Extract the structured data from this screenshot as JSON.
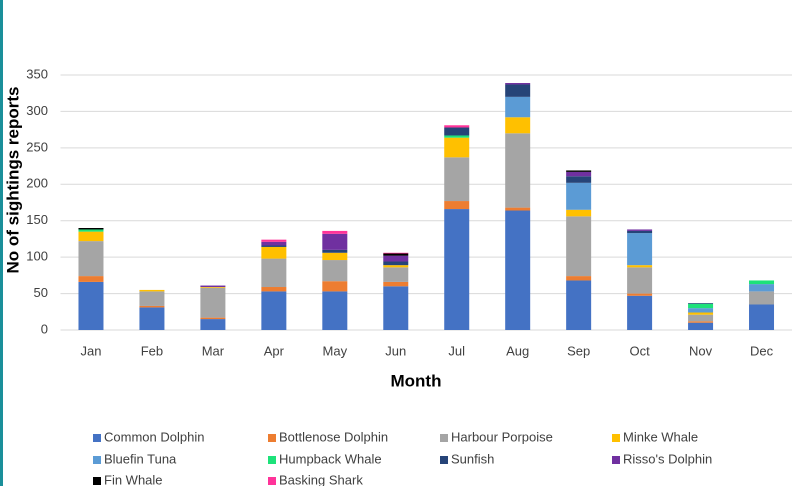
{
  "chart_data": {
    "type": "stacked_bar",
    "x_label": "Month",
    "y_label": "No of sightings reports",
    "categories": [
      "Jan",
      "Feb",
      "Mar",
      "Apr",
      "May",
      "Jun",
      "Jul",
      "Aug",
      "Sep",
      "Oct",
      "Nov",
      "Dec"
    ],
    "ylim": [
      0,
      350
    ],
    "yticks": [
      0,
      50,
      100,
      150,
      200,
      250,
      300,
      350
    ],
    "grid": true,
    "series": [
      {
        "name": "Common Dolphin",
        "color": "#4472c4",
        "values": [
          66,
          31,
          15,
          53,
          53,
          60,
          166,
          164,
          68,
          47,
          10,
          35
        ]
      },
      {
        "name": "Bottlenose Dolphin",
        "color": "#ed7d31",
        "values": [
          8,
          2,
          2,
          6,
          14,
          6,
          11,
          4,
          6,
          3,
          2,
          0
        ]
      },
      {
        "name": "Harbour Porpoise",
        "color": "#a5a5a5",
        "values": [
          48,
          20,
          41,
          39,
          29,
          20,
          60,
          102,
          82,
          36,
          9,
          18
        ]
      },
      {
        "name": "Minke Whale",
        "color": "#ffc000",
        "values": [
          13,
          2,
          1,
          16,
          10,
          3,
          27,
          22,
          9,
          3,
          3,
          0
        ]
      },
      {
        "name": "Bluefin Tuna",
        "color": "#5b9bd5",
        "values": [
          0,
          0,
          0,
          0,
          0,
          0,
          0,
          28,
          37,
          44,
          6,
          10
        ]
      },
      {
        "name": "Humpback Whale",
        "color": "#1de27a",
        "values": [
          3,
          0,
          0,
          0,
          0,
          0,
          3,
          0,
          0,
          0,
          6,
          5
        ]
      },
      {
        "name": "Sunfish",
        "color": "#264478",
        "values": [
          0,
          0,
          0,
          2,
          4,
          5,
          11,
          17,
          9,
          3,
          1,
          0
        ]
      },
      {
        "name": "Risso's Dolphin",
        "color": "#7030a0",
        "values": [
          0,
          0,
          2,
          5,
          22,
          8,
          0,
          2,
          6,
          2,
          0,
          0
        ]
      },
      {
        "name": "Fin Whale",
        "color": "#000000",
        "values": [
          2,
          0,
          0,
          0,
          0,
          3,
          0,
          0,
          2,
          0,
          0,
          0
        ]
      },
      {
        "name": "Basking Shark",
        "color": "#ff3399",
        "values": [
          0,
          0,
          0,
          3,
          4,
          1,
          3,
          0,
          0,
          0,
          0,
          0
        ]
      }
    ]
  }
}
